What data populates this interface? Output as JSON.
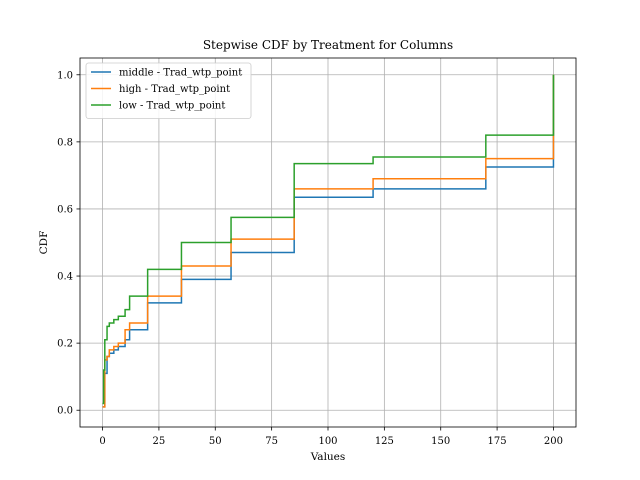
{
  "chart_data": {
    "type": "line",
    "step": "post",
    "title": "Stepwise CDF by Treatment for Columns",
    "xlabel": "Values",
    "ylabel": "CDF",
    "xlim": [
      -10,
      210
    ],
    "ylim": [
      -0.05,
      1.05
    ],
    "xticks": [
      0,
      25,
      50,
      75,
      100,
      125,
      150,
      175,
      200
    ],
    "xtick_labels": [
      "0",
      "25",
      "50",
      "75",
      "100",
      "125",
      "150",
      "175",
      "200"
    ],
    "yticks": [
      0.0,
      0.2,
      0.4,
      0.6,
      0.8,
      1.0
    ],
    "ytick_labels": [
      "0.0",
      "0.2",
      "0.4",
      "0.6",
      "0.8",
      "1.0"
    ],
    "grid": true,
    "legend_position": "top-left",
    "series": [
      {
        "name": "middle - Trad_wtp_point",
        "color": "#1f77b4",
        "x": [
          0,
          1,
          2,
          3,
          5,
          7,
          10,
          12,
          15,
          20,
          35,
          57,
          85,
          120,
          170,
          200,
          200
        ],
        "y": [
          0.01,
          0.11,
          0.16,
          0.17,
          0.18,
          0.19,
          0.21,
          0.24,
          0.24,
          0.32,
          0.39,
          0.47,
          0.635,
          0.66,
          0.725,
          0.725,
          1.0
        ]
      },
      {
        "name": "high - Trad_wtp_point",
        "color": "#ff7f0e",
        "x": [
          0,
          1,
          2,
          3,
          5,
          7,
          10,
          12,
          15,
          20,
          35,
          57,
          85,
          120,
          170,
          200,
          200
        ],
        "y": [
          0.01,
          0.15,
          0.16,
          0.18,
          0.19,
          0.2,
          0.24,
          0.26,
          0.26,
          0.34,
          0.43,
          0.51,
          0.66,
          0.69,
          0.75,
          0.75,
          1.0
        ]
      },
      {
        "name": "low - Trad_wtp_point",
        "color": "#2ca02c",
        "x": [
          0,
          0.5,
          1,
          2,
          3,
          5,
          7,
          10,
          12,
          15,
          20,
          35,
          57,
          85,
          120,
          170,
          200,
          200
        ],
        "y": [
          0.02,
          0.12,
          0.21,
          0.25,
          0.26,
          0.27,
          0.28,
          0.3,
          0.34,
          0.34,
          0.42,
          0.5,
          0.575,
          0.735,
          0.755,
          0.82,
          0.82,
          1.0
        ]
      }
    ]
  }
}
